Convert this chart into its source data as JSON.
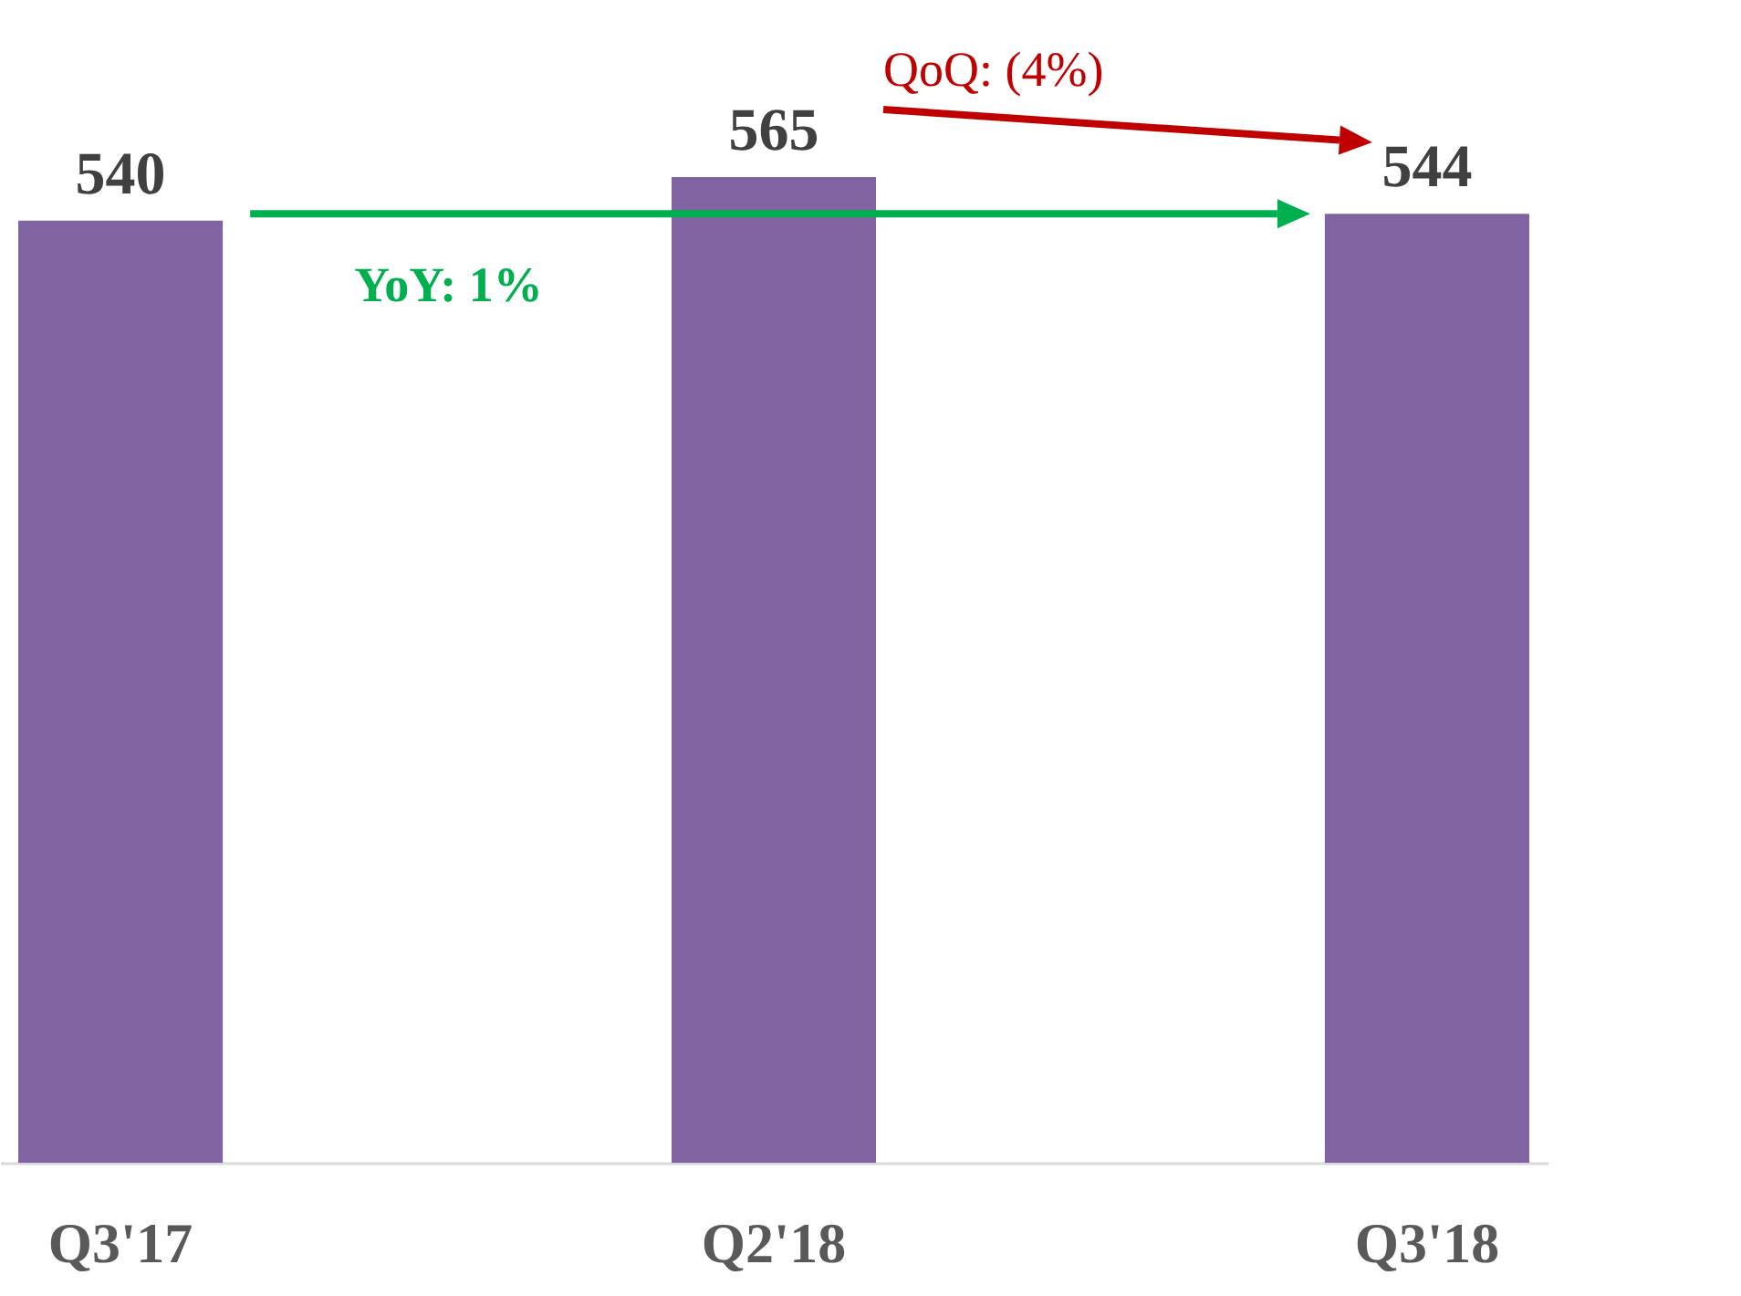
{
  "chart_data": {
    "type": "bar",
    "categories": [
      "Q3'17",
      "Q2'18",
      "Q3'18"
    ],
    "values": [
      540,
      565,
      544
    ],
    "color": "#8064a2",
    "data_labels": true,
    "grid": false,
    "annotations": [
      "YoY: 1%",
      "QoQ: (4%)"
    ]
  }
}
